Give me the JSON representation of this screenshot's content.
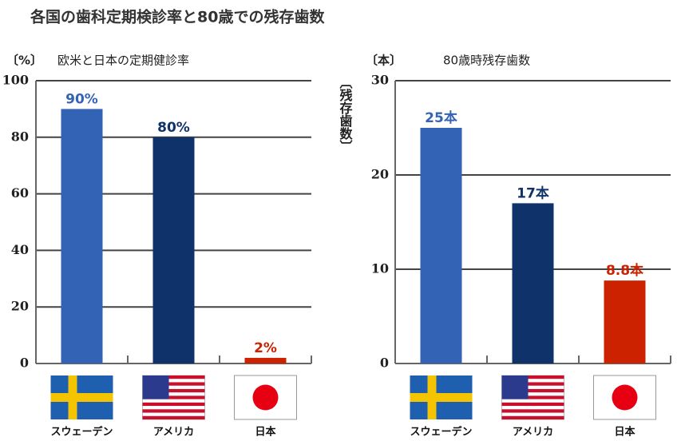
{
  "title": "各国の歯科定期検診率と80歳での残存歯数",
  "chart_data": [
    {
      "type": "bar",
      "title": "欧米と日本の定期健診率",
      "y_unit": "〔%〕",
      "categories": [
        "スウェーデン",
        "アメリカ",
        "日本"
      ],
      "values": [
        90,
        80,
        2
      ],
      "value_labels": [
        "90%",
        "80%",
        "2%"
      ],
      "colors": [
        "#3363b5",
        "#10326a",
        "#cc2200"
      ],
      "ylim": [
        0,
        100
      ],
      "yticks": [
        0,
        20,
        40,
        60,
        80,
        100
      ],
      "grid": true
    },
    {
      "type": "bar",
      "title": "80歳時残存歯数",
      "y_unit": "〔本〕",
      "y_label": "〔残存歯数〕",
      "categories": [
        "スウェーデン",
        "アメリカ",
        "日本"
      ],
      "values": [
        25,
        17,
        8.8
      ],
      "value_labels": [
        "25本",
        "17本",
        "8.8本"
      ],
      "colors": [
        "#3363b5",
        "#10326a",
        "#cc2200"
      ],
      "ylim": [
        0,
        30
      ],
      "yticks": [
        0,
        10,
        20,
        30
      ],
      "grid": true
    }
  ]
}
